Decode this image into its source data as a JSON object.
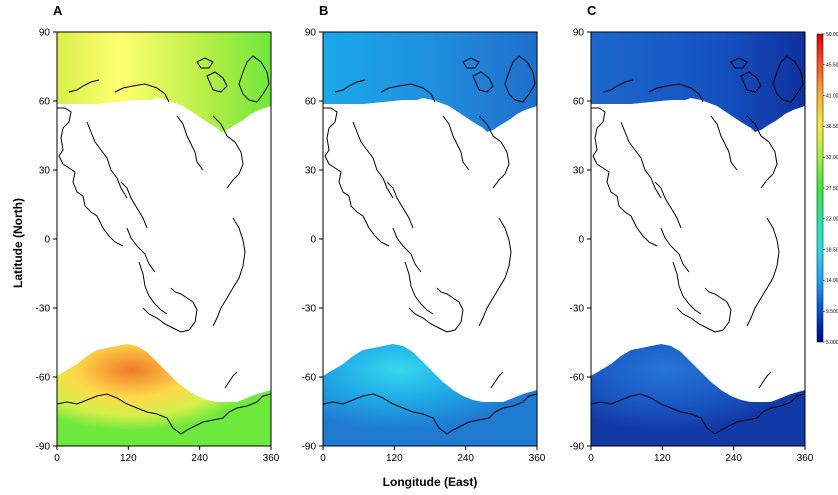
{
  "chart_data": {
    "type": "heatmap",
    "panels": [
      {
        "label": "A",
        "color_scale": [
          "#ffff66",
          "#c8f040",
          "#66e63c",
          "#f08b30",
          "#ffec5a"
        ],
        "note_regions": "northern high-latitude and southern ocean field shown as color map over world coastlines"
      },
      {
        "label": "B",
        "color_scale": [
          "#19a6e6",
          "#2f8fe0",
          "#1f6ecb",
          "#33d6ee"
        ]
      },
      {
        "label": "C",
        "color_scale": [
          "#1f6fd0",
          "#184fbf",
          "#0f2f9c"
        ]
      }
    ],
    "x_axis": {
      "label": "Longitude (East)",
      "ticks": [
        "0",
        "120",
        "240",
        "360"
      ],
      "range": [
        0,
        360
      ]
    },
    "y_axis": {
      "label": "Latitude (North)",
      "ticks": [
        "90",
        "60",
        "30",
        "0",
        "-30",
        "-60",
        "-90"
      ],
      "range": [
        -90,
        90
      ]
    },
    "colorbar": {
      "ticks": [
        "50.00",
        "45.50",
        "41.00",
        "36.50",
        "32.00",
        "27.50",
        "23.00",
        "18.50",
        "14.00",
        "9.500",
        "5.000"
      ],
      "min": 5.0,
      "max": 50.0,
      "colors": [
        "#00008b",
        "#0050d0",
        "#1ea0ff",
        "#22e0e0",
        "#22e8a0",
        "#3ce83c",
        "#a0f03c",
        "#f0f03c",
        "#ffb030",
        "#ff5020",
        "#e00000"
      ]
    }
  }
}
